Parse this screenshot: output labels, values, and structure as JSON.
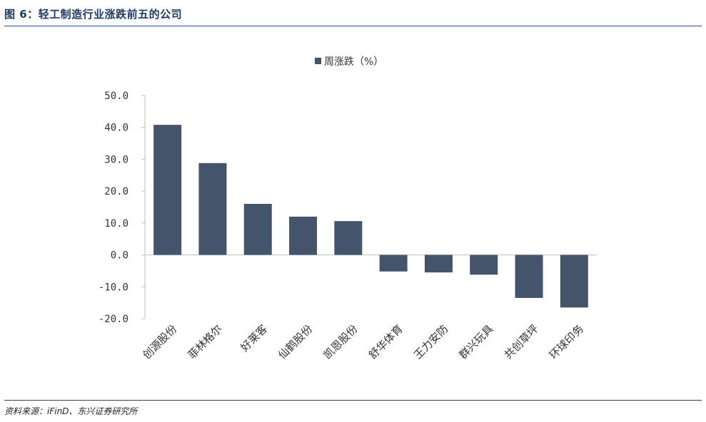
{
  "header": {
    "title": "图 6：轻工制造行业涨跌前五的公司"
  },
  "footer": {
    "source": "资料来源：iFinD、东兴证券研究所"
  },
  "chart_data": {
    "type": "bar",
    "categories": [
      "创源股份",
      "菲林格尔",
      "好莱客",
      "仙鹤股份",
      "凯恩股份",
      "舒华体育",
      "王力安防",
      "群兴玩具",
      "共创草坪",
      "环球印务"
    ],
    "series": [
      {
        "name": "周涨跌（%）",
        "values": [
          40.8,
          28.8,
          16.0,
          12.0,
          10.6,
          -5.2,
          -5.5,
          -6.2,
          -13.5,
          -16.5
        ],
        "color": "#44546a"
      }
    ],
    "yticks": [
      "50.0",
      "40.0",
      "30.0",
      "20.0",
      "10.0",
      "0.0",
      "-10.0",
      "-20.0"
    ],
    "ylim": [
      -20,
      50
    ],
    "legend_position": "top-center",
    "grid": false
  }
}
